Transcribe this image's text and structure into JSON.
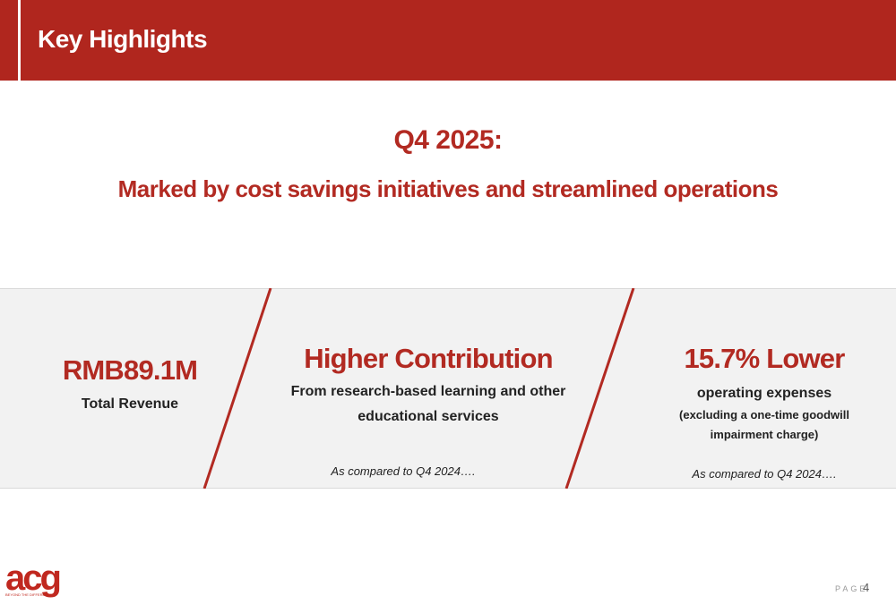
{
  "header": {
    "title": "Key Highlights"
  },
  "headline": {
    "line1": "Q4 2025:",
    "line2": "Marked by cost savings initiatives and streamlined operations"
  },
  "panels": [
    {
      "figure": "RMB89.1M",
      "caption": "Total Revenue"
    },
    {
      "figure": "Higher Contribution",
      "caption": "From research-based learning and other educational services",
      "note": "As compared to Q4 2024…."
    },
    {
      "figure": "15.7% Lower",
      "caption": "operating expenses",
      "detail": "(excluding a one-time goodwill impairment charge)",
      "note": "As compared to Q4 2024…."
    }
  ],
  "logo": {
    "text": "acg",
    "tagline": "BEYOND THE DIFFERENCE"
  },
  "footer": {
    "page_label": "PAGE",
    "page_number": "4"
  }
}
